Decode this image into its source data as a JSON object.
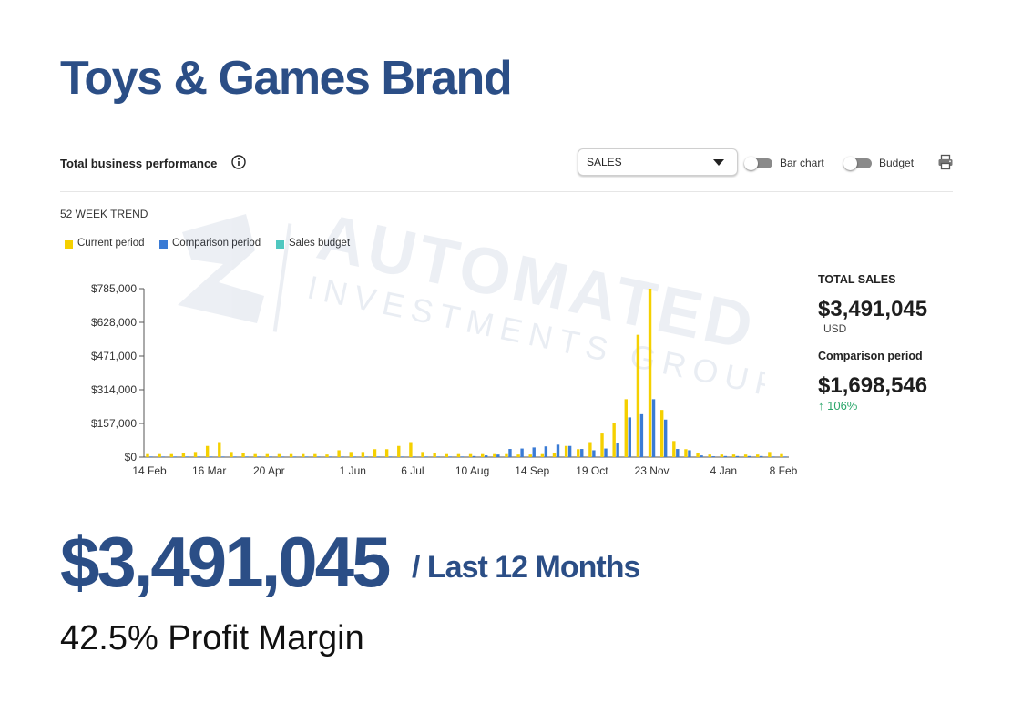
{
  "page": {
    "title": "Toys & Games Brand"
  },
  "card": {
    "title": "Total business performance",
    "metric_select": {
      "selected": "SALES"
    },
    "toggles": [
      {
        "label": "Bar chart",
        "on": false
      },
      {
        "label": "Budget",
        "on": false
      }
    ],
    "icons": {
      "info": "info-icon",
      "print": "print-icon"
    }
  },
  "trend": {
    "title": "52 WEEK TREND"
  },
  "watermark": {
    "line1": "AUTOMATED",
    "line2": "INVESTMENTS GROUP"
  },
  "legend": [
    {
      "label": "Current period",
      "color": "#f5d000"
    },
    {
      "label": "Comparison period",
      "color": "#3a7bd5"
    },
    {
      "label": "Sales budget",
      "color": "#4fc7c0"
    }
  ],
  "chart_data": {
    "type": "bar",
    "title": "",
    "xlabel": "",
    "ylabel": "",
    "ylim": [
      0,
      785000
    ],
    "yticks": [
      "$785,000",
      "$628,000",
      "$471,000",
      "$314,000",
      "$157,000",
      "$0"
    ],
    "ytick_values": [
      785000,
      628000,
      471000,
      314000,
      157000,
      0
    ],
    "xticks": [
      "14 Feb",
      "16 Mar",
      "20 Apr",
      "1 Jun",
      "6 Jul",
      "10 Aug",
      "14 Sep",
      "19 Oct",
      "23 Nov",
      "4 Jan",
      "8 Feb"
    ],
    "xtick_positions": [
      0,
      5,
      10,
      17,
      22,
      27,
      32,
      37,
      42,
      48,
      53
    ],
    "grid": false,
    "legend_position": "top-left",
    "series": [
      {
        "name": "Current period",
        "color": "#f5d000",
        "values": [
          14000,
          14000,
          14000,
          19000,
          24000,
          52000,
          70000,
          24000,
          19000,
          14000,
          14000,
          14000,
          14000,
          14000,
          14000,
          12000,
          32000,
          24000,
          24000,
          37000,
          37000,
          52000,
          70000,
          24000,
          19000,
          14000,
          14000,
          14000,
          14000,
          14000,
          14000,
          12000,
          12000,
          14000,
          19000,
          52000,
          37000,
          70000,
          110000,
          160000,
          270000,
          570000,
          785000,
          220000,
          75000,
          37000,
          19000,
          12000,
          12000,
          12000,
          12000,
          12000,
          24000,
          14000
        ]
      },
      {
        "name": "Comparison period",
        "color": "#3a7bd5",
        "values": [
          3000,
          3000,
          3000,
          3000,
          3000,
          3000,
          3000,
          3000,
          3000,
          3000,
          3000,
          3000,
          3000,
          3000,
          3000,
          3000,
          3000,
          3000,
          3000,
          3000,
          3000,
          3000,
          3000,
          3000,
          3000,
          3000,
          3000,
          5000,
          8000,
          12000,
          38000,
          40000,
          45000,
          50000,
          58000,
          52000,
          38000,
          32000,
          40000,
          65000,
          185000,
          200000,
          270000,
          175000,
          38000,
          32000,
          8000,
          4000,
          5000,
          5000,
          5000,
          5000,
          3000,
          3000
        ]
      },
      {
        "name": "Sales budget",
        "color": "#4fc7c0",
        "values": []
      }
    ]
  },
  "summary": {
    "total_label": "TOTAL SALES",
    "total_value": "$3,491,045",
    "currency": "USD",
    "comparison_label": "Comparison period",
    "comparison_value": "$1,698,546",
    "change": "↑ 106%",
    "change_color": "#2aa66a"
  },
  "headline": {
    "value": "$3,491,045",
    "period": "/ Last 12 Months",
    "margin": "42.5% Profit Margin"
  }
}
